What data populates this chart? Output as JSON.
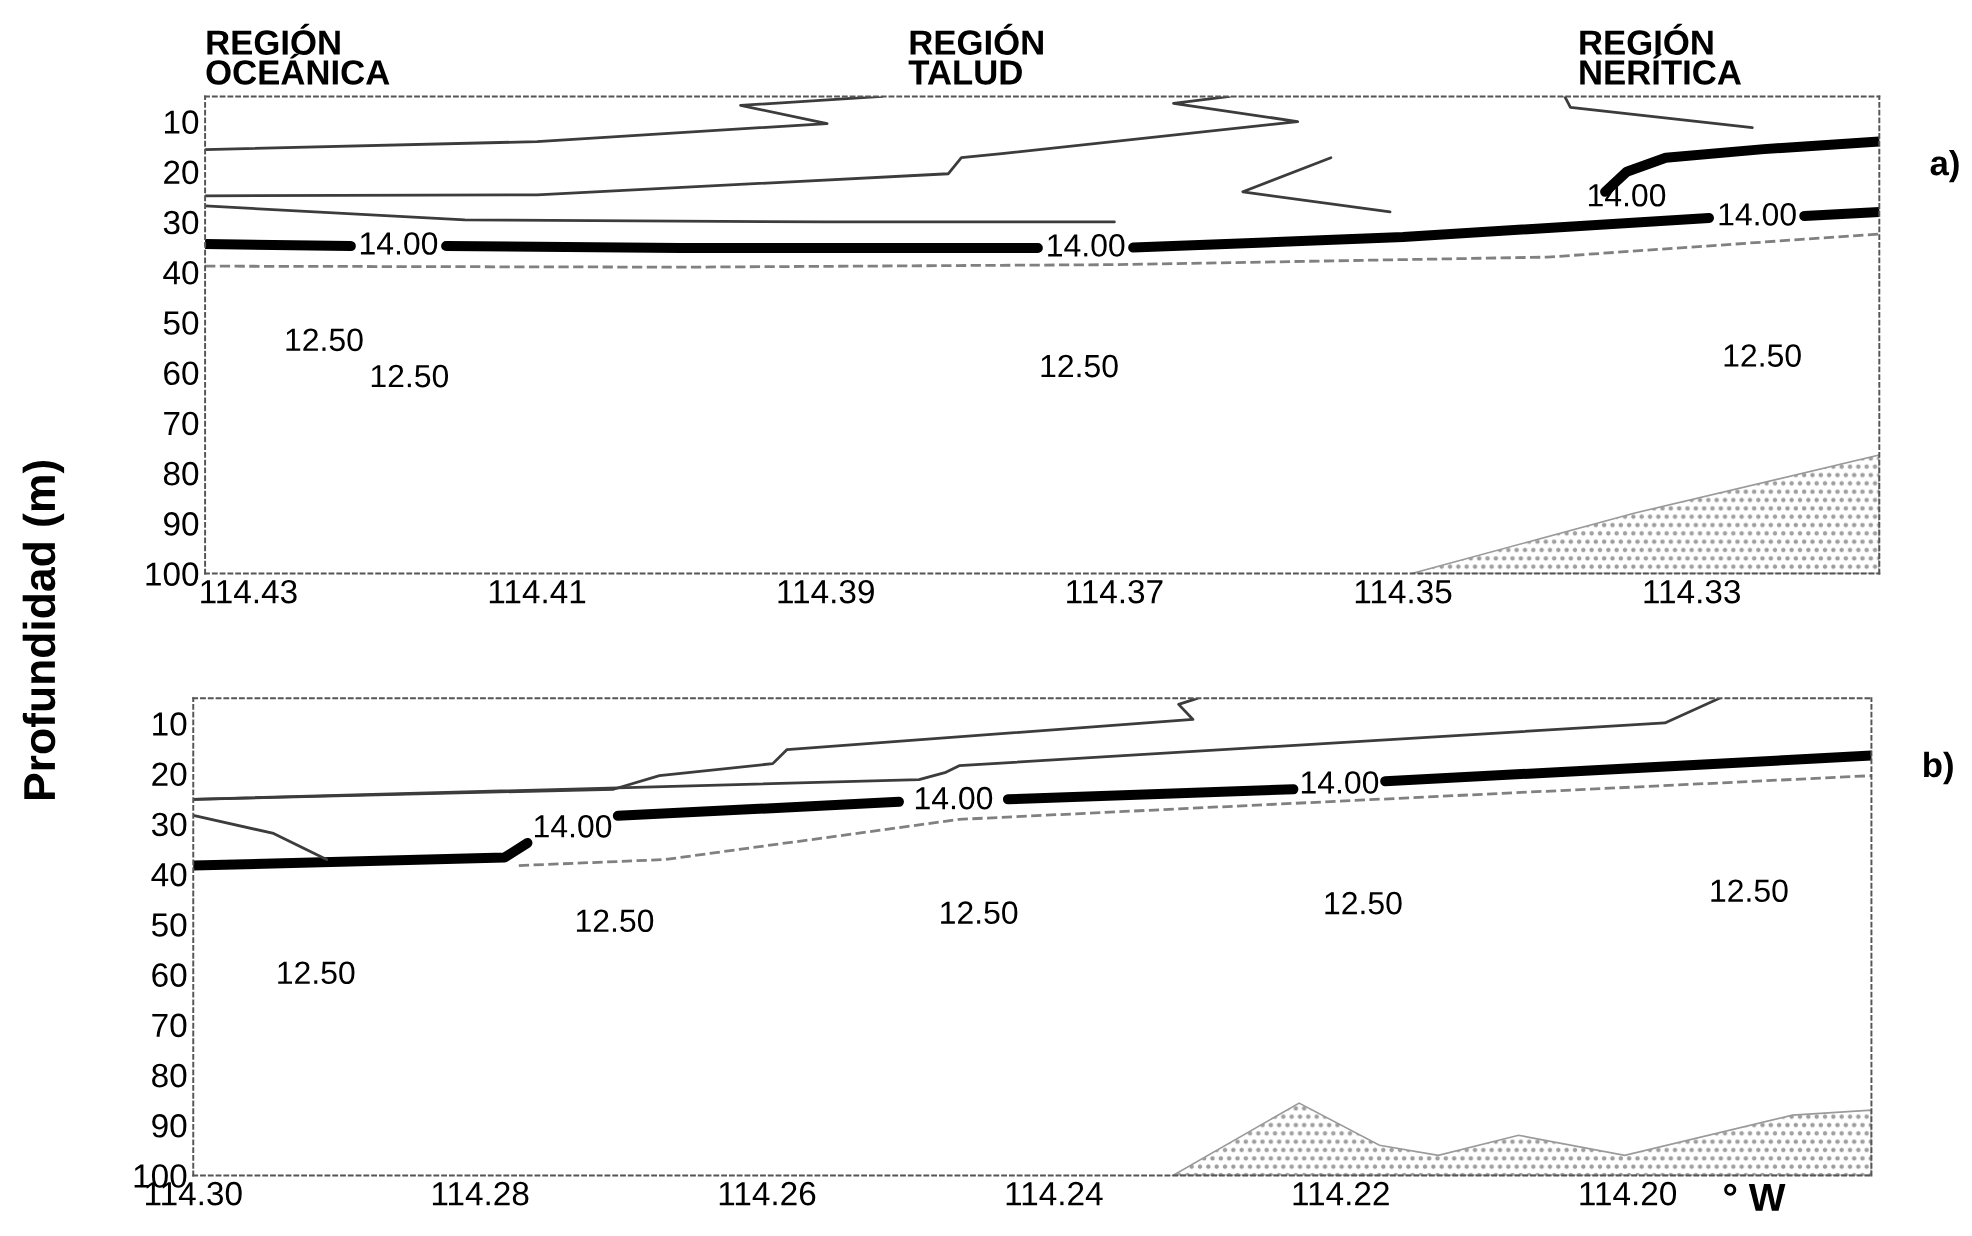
{
  "chart_data": [
    {
      "type": "line",
      "ylabel": "Profundidad (m)",
      "annotations": [
        "REGIÓN\nOCEÁNICA",
        "REGIÓN\nTALUD",
        "REGIÓN\nNERÍTICA",
        "a)",
        "14.00",
        "12.50",
        "12.50",
        "12.50",
        "12.50",
        "14.00",
        "14.00",
        "14.00"
      ],
      "xlim": [
        114.433,
        114.317
      ],
      "ylim": [
        100,
        5
      ],
      "xticks": [
        114.43,
        114.41,
        114.39,
        114.37,
        114.35,
        114.33
      ],
      "yticks": [
        10,
        20,
        30,
        40,
        50,
        60,
        70,
        80,
        90,
        100
      ],
      "grid": false,
      "series": [
        {
          "color": "#000000",
          "x": [
            114.433,
            114.4229,
            114.4196,
            114.4163,
            114.4,
            114.3753,
            114.372,
            114.3687,
            114.35,
            114.3288,
            114.3255,
            114.3222,
            114.317
          ],
          "values": [
            34.4,
            34.8,
            null,
            34.8,
            35.2,
            35.2,
            null,
            35.1,
            33,
            29.2,
            null,
            28.8,
            28
          ]
        },
        {
          "color": "#000000",
          "x": [
            114.336,
            114.3345,
            114.3318,
            114.325,
            114.317
          ],
          "values": [
            24,
            20,
            17.2,
            15.5,
            14
          ]
        },
        {
          "color": "#3c3c3c",
          "x": [
            114.433,
            114.41,
            114.3899,
            114.3959,
            114.3861
          ],
          "values": [
            15.6,
            14,
            10.4,
            6.8,
            5
          ]
        },
        {
          "color": "#3c3c3c",
          "x": [
            114.433,
            114.41,
            114.3815,
            114.3806,
            114.3778,
            114.3573,
            114.3659,
            114.362
          ],
          "values": [
            24.8,
            24.6,
            20.4,
            17.2,
            16.4,
            10,
            6.4,
            5
          ]
        },
        {
          "color": "#3c3c3c",
          "x": [
            114.3388,
            114.3384,
            114.3258
          ],
          "values": [
            5,
            7.2,
            11.2
          ]
        },
        {
          "color": "#3c3c3c",
          "x": [
            114.433,
            114.415,
            114.39,
            114.37
          ],
          "values": [
            26.8,
            29.6,
            30,
            30
          ]
        },
        {
          "color": "#3c3c3c",
          "x": [
            114.355,
            114.3611,
            114.3509
          ],
          "values": [
            17.2,
            24,
            28
          ]
        },
        {
          "color": "#808080",
          "line_style": "dashed",
          "x": [
            114.433,
            114.4,
            114.37,
            114.34,
            114.317
          ],
          "values": [
            38.8,
            39,
            38.5,
            37,
            32.4
          ]
        },
        {
          "type": "area",
          "color": "#9a9a9a",
          "x": [
            114.3494,
            114.334,
            114.317,
            114.317
          ],
          "values": [
            100,
            88,
            76.4,
            100
          ]
        }
      ]
    },
    {
      "type": "line",
      "xlabel": "° W",
      "annotations": [
        "b)",
        "12.50",
        "12.50",
        "12.50",
        "12.50",
        "12.50",
        "14.00",
        "14.00",
        "14.00"
      ],
      "xlim": [
        114.3,
        114.183
      ],
      "ylim": [
        100,
        5
      ],
      "xticks": [
        {
          "value": 114.3,
          "label": "114.30"
        },
        114.28,
        114.26,
        114.24,
        114.22,
        {
          "value": 114.2,
          "label": "114.20"
        }
      ],
      "yticks": [
        10,
        20,
        30,
        40,
        50,
        60,
        70,
        80,
        90,
        100
      ],
      "grid": false,
      "series": [
        {
          "color": "#000000",
          "x": [
            114.3,
            114.2783,
            114.2767,
            114.2735,
            114.2704,
            114.2508,
            114.247,
            114.2432,
            114.2233,
            114.2201,
            114.2169,
            114.183
          ],
          "values": [
            38.3,
            36.7,
            33.8,
            null,
            28.4,
            25.6,
            null,
            25.1,
            23.1,
            null,
            21.5,
            16.4
          ]
        },
        {
          "color": "#3c3c3c",
          "x": [
            114.3,
            114.2707,
            114.2675,
            114.2596,
            114.2586,
            114.2303,
            114.2313,
            114.23
          ],
          "values": [
            25.1,
            23.1,
            20.4,
            18,
            15.2,
            9.2,
            6.2,
            5
          ]
        },
        {
          "color": "#3c3c3c",
          "x": [
            114.3,
            114.2494,
            114.2476,
            114.2466,
            114.1974,
            114.1936
          ],
          "values": [
            25.1,
            21.2,
            19.8,
            18.4,
            9.9,
            5
          ]
        },
        {
          "color": "#3c3c3c",
          "x": [
            114.3,
            114.2944,
            114.2907
          ],
          "values": [
            28.3,
            31.9,
            37.1
          ]
        },
        {
          "color": "#808080",
          "line_style": "dashed",
          "x": [
            114.2773,
            114.2671,
            114.2466,
            114.183
          ],
          "values": [
            38.3,
            37.1,
            29.1,
            20.4
          ]
        },
        {
          "type": "area",
          "color": "#9a9a9a",
          "x": [
            114.2317,
            114.2229,
            114.2173,
            114.2132,
            114.2076,
            114.2002,
            114.1885,
            114.183,
            114.183
          ],
          "values": [
            100,
            85.6,
            94,
            96,
            92,
            96,
            88,
            87,
            100
          ]
        }
      ]
    }
  ]
}
